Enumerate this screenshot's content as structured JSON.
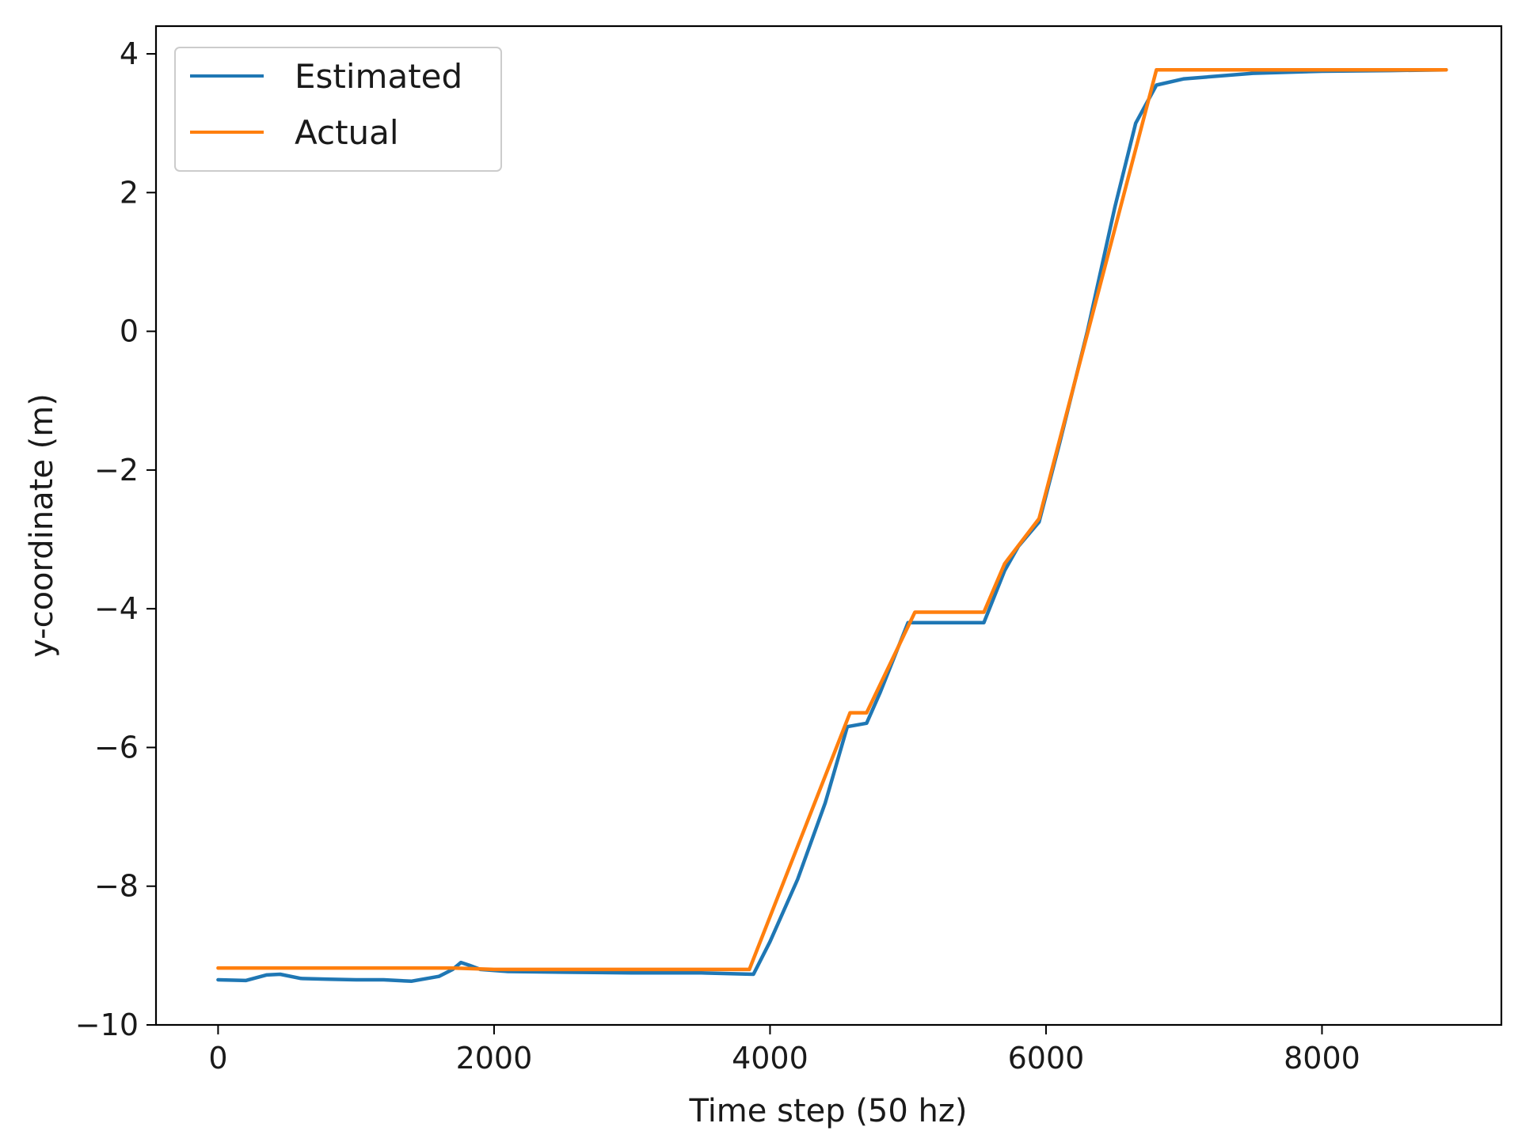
{
  "chart_data": {
    "type": "line",
    "title": "",
    "xlabel": "Time step (50 hz)",
    "ylabel": "y-coordinate (m)",
    "xlim": [
      -450,
      9300
    ],
    "ylim": [
      -10,
      4.4
    ],
    "x_ticks": [
      0,
      2000,
      4000,
      6000,
      8000
    ],
    "x_tick_labels": [
      "0",
      "2000",
      "4000",
      "6000",
      "8000"
    ],
    "y_ticks": [
      4,
      2,
      0,
      -2,
      -4,
      -6,
      -8,
      -10
    ],
    "y_tick_labels": [
      "4",
      "2",
      "0",
      "−2",
      "−4",
      "−6",
      "−8",
      "−10"
    ],
    "grid": false,
    "legend_position": "top-left",
    "series": [
      {
        "name": "Estimated",
        "color": "#1f77b4",
        "points": [
          [
            0,
            -9.35
          ],
          [
            200,
            -9.36
          ],
          [
            350,
            -9.28
          ],
          [
            450,
            -9.27
          ],
          [
            600,
            -9.33
          ],
          [
            800,
            -9.34
          ],
          [
            1000,
            -9.35
          ],
          [
            1200,
            -9.35
          ],
          [
            1400,
            -9.37
          ],
          [
            1600,
            -9.3
          ],
          [
            1700,
            -9.2
          ],
          [
            1760,
            -9.1
          ],
          [
            1820,
            -9.14
          ],
          [
            1900,
            -9.2
          ],
          [
            2100,
            -9.23
          ],
          [
            2500,
            -9.24
          ],
          [
            3000,
            -9.25
          ],
          [
            3500,
            -9.25
          ],
          [
            3880,
            -9.27
          ],
          [
            4000,
            -8.8
          ],
          [
            4200,
            -7.9
          ],
          [
            4400,
            -6.8
          ],
          [
            4560,
            -5.7
          ],
          [
            4700,
            -5.65
          ],
          [
            4800,
            -5.2
          ],
          [
            5000,
            -4.2
          ],
          [
            5200,
            -4.2
          ],
          [
            5550,
            -4.2
          ],
          [
            5700,
            -3.45
          ],
          [
            5800,
            -3.1
          ],
          [
            5950,
            -2.75
          ],
          [
            6100,
            -1.6
          ],
          [
            6300,
            0.0
          ],
          [
            6500,
            1.8
          ],
          [
            6650,
            3.0
          ],
          [
            6800,
            3.55
          ],
          [
            7000,
            3.64
          ],
          [
            7500,
            3.72
          ],
          [
            8000,
            3.75
          ],
          [
            8500,
            3.76
          ],
          [
            8900,
            3.77
          ]
        ]
      },
      {
        "name": "Actual",
        "color": "#ff7f0e",
        "points": [
          [
            0,
            -9.18
          ],
          [
            1000,
            -9.18
          ],
          [
            1700,
            -9.18
          ],
          [
            2000,
            -9.2
          ],
          [
            3000,
            -9.2
          ],
          [
            3850,
            -9.2
          ],
          [
            4580,
            -5.5
          ],
          [
            4700,
            -5.5
          ],
          [
            5050,
            -4.05
          ],
          [
            5550,
            -4.05
          ],
          [
            5700,
            -3.35
          ],
          [
            5950,
            -2.7
          ],
          [
            6800,
            3.77
          ],
          [
            8900,
            3.77
          ]
        ]
      }
    ]
  }
}
